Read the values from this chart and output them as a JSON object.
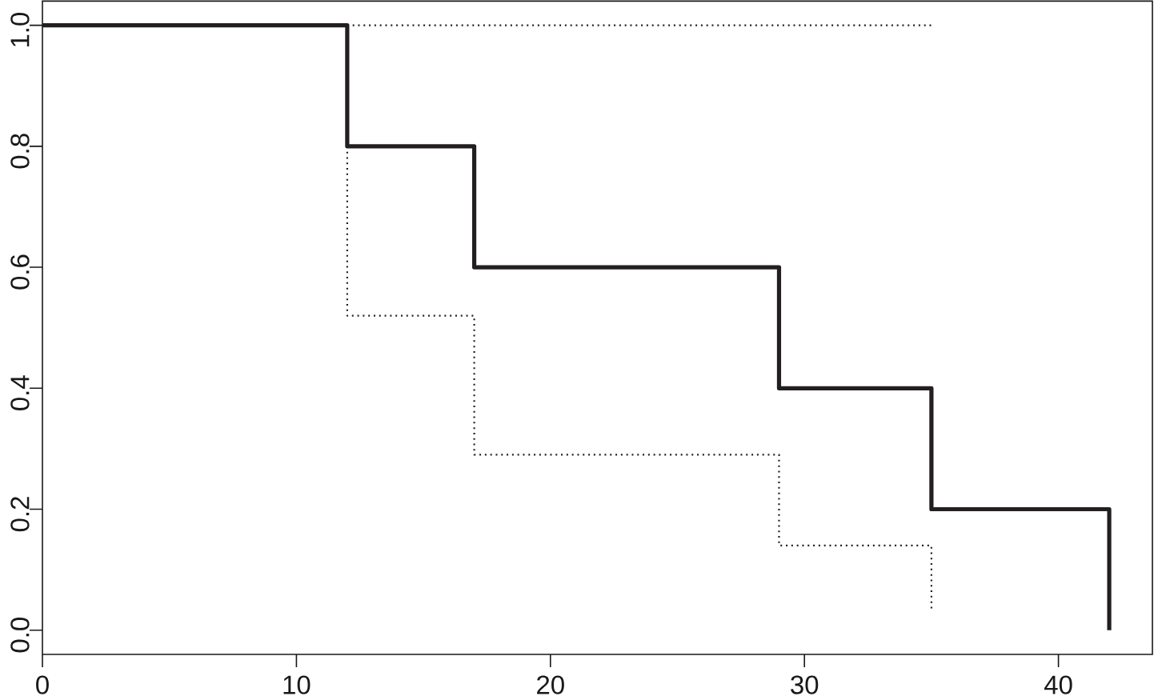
{
  "chart_data": {
    "type": "step",
    "x": [
      0,
      12,
      17,
      29,
      35,
      42
    ],
    "series": [
      {
        "color": "#231f20",
        "values": [
          1,
          0.8,
          0.6,
          0.4,
          0.2,
          0
        ],
        "line_style": "solid"
      },
      {
        "color": "#231f20",
        "x": [
          12,
          35
        ],
        "values": [
          1,
          1
        ],
        "line_style": "dotted"
      },
      {
        "color": "#231f20",
        "x": [
          12,
          12,
          17,
          29,
          35
        ],
        "values": [
          0.8,
          0.52,
          0.29,
          0.14,
          0.03
        ],
        "line_style": "dotted"
      }
    ],
    "xlim": [
      0,
      43.7
    ],
    "ylim": [
      -0.04,
      1.04
    ],
    "xticks": [
      0,
      10,
      20,
      30,
      40
    ],
    "yticks": [
      {
        "value": 0,
        "label": "0.0"
      },
      0.2,
      0.4,
      0.6,
      0.8,
      {
        "value": 1,
        "label": "1.0"
      }
    ],
    "grid": false,
    "marker": "none"
  }
}
